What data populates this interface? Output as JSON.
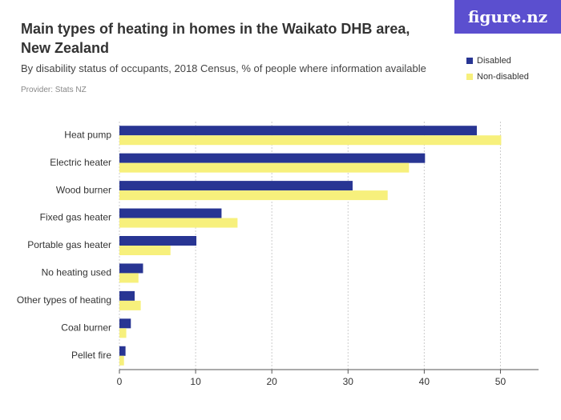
{
  "chart_data": {
    "type": "bar",
    "orientation": "horizontal",
    "title": "Main types of heating in homes in the Waikato DHB area, New Zealand",
    "subtitle": "By disability status of occupants, 2018 Census, % of people where information available",
    "provider": "Provider: Stats NZ",
    "brand": "figure.nz",
    "categories": [
      "Heat pump",
      "Electric heater",
      "Wood burner",
      "Fixed gas heater",
      "Portable gas heater",
      "No heating used",
      "Other types of heating",
      "Coal burner",
      "Pellet fire"
    ],
    "series": [
      {
        "name": "Disabled",
        "color": "#283593",
        "values": [
          46.9,
          40.1,
          30.6,
          13.4,
          10.1,
          3.1,
          2.0,
          1.5,
          0.8
        ]
      },
      {
        "name": "Non-disabled",
        "color": "#f7f07c",
        "values": [
          50.1,
          38.0,
          35.2,
          15.5,
          6.7,
          2.5,
          2.8,
          0.9,
          0.6
        ]
      }
    ],
    "xlim": [
      0,
      55
    ],
    "xticks": [
      0,
      10,
      20,
      30,
      40,
      50
    ],
    "grid": true
  }
}
